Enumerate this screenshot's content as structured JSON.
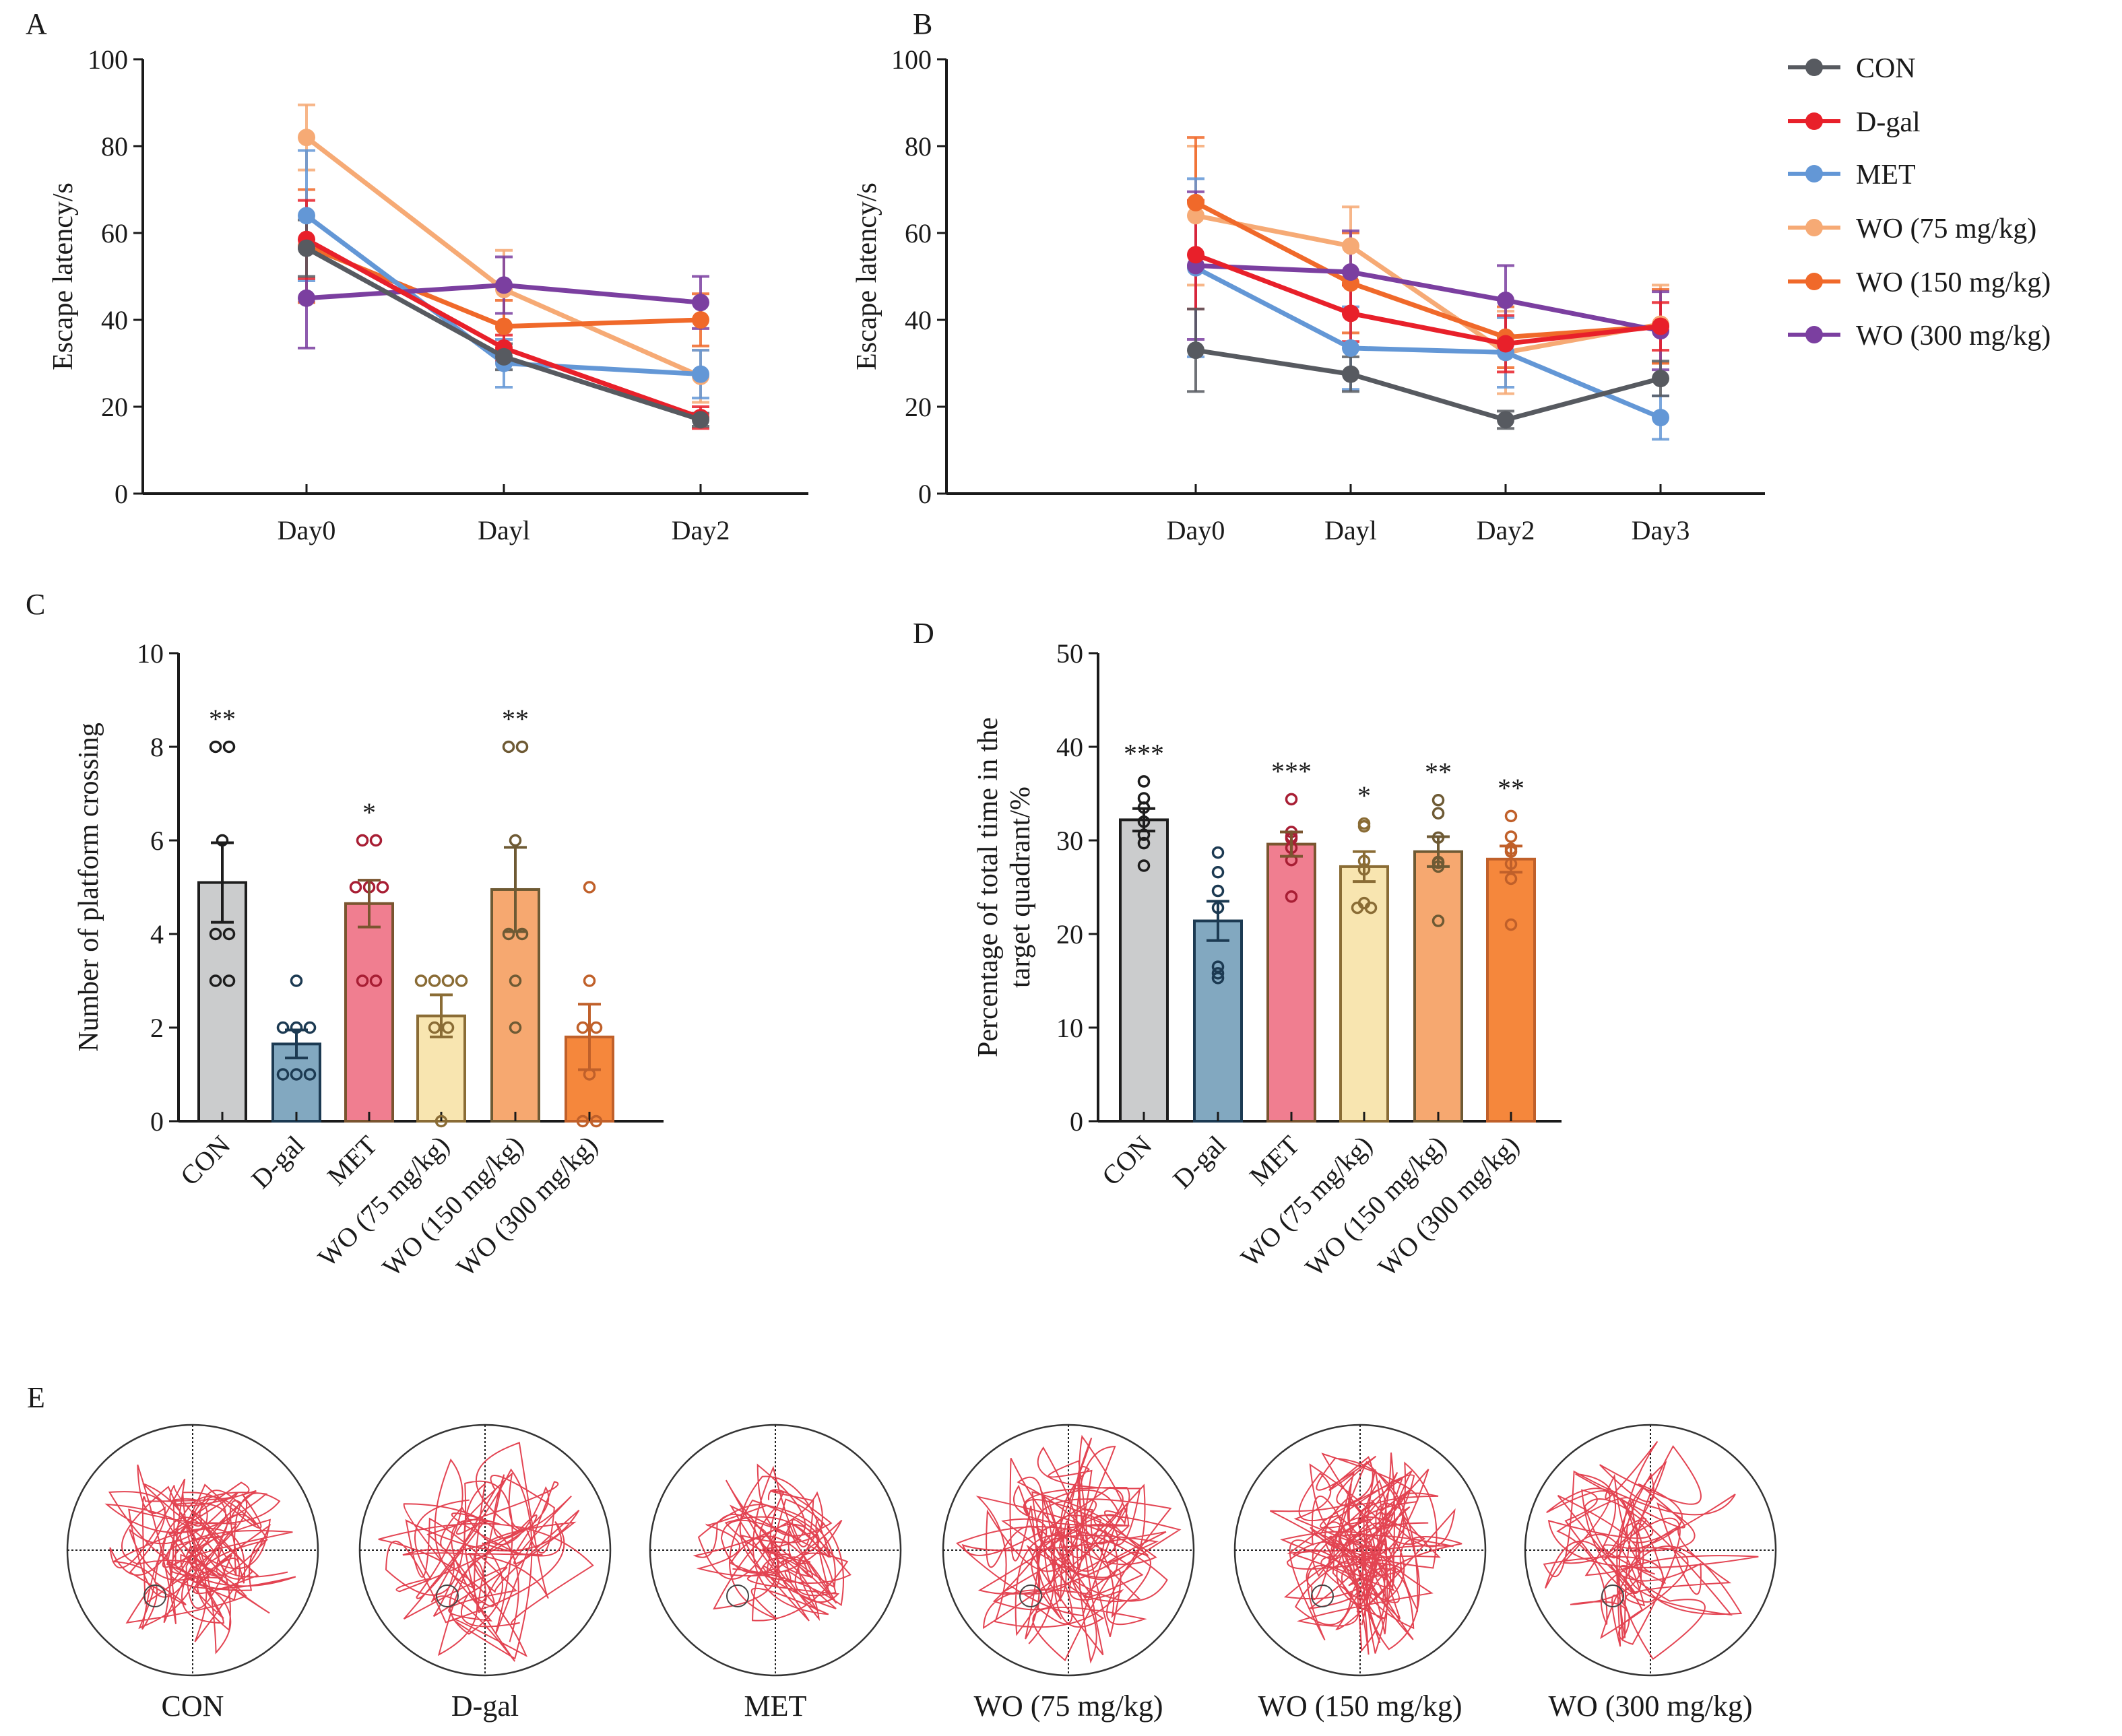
{
  "figure": {
    "panel_letters": [
      "A",
      "B",
      "C",
      "D",
      "E"
    ]
  },
  "groups": [
    {
      "name": "CON",
      "color": "#575a60"
    },
    {
      "name": "D-gal",
      "color": "#e8202a"
    },
    {
      "name": "MET",
      "color": "#6397d6"
    },
    {
      "name": "WO (75 mg/kg)",
      "color": "#f6aa75"
    },
    {
      "name": "WO (150 mg/kg)",
      "color": "#f0692a"
    },
    {
      "name": "WO (300 mg/kg)",
      "color": "#7b3fa0"
    }
  ],
  "legend": {
    "placement": "right of panel B",
    "entries": [
      "CON",
      "D-gal",
      "MET",
      "WO (75 mg/kg)",
      "WO (150 mg/kg)",
      "WO (300 mg/kg)"
    ]
  },
  "chart_data": [
    {
      "panel": "A",
      "type": "line",
      "title": "",
      "xlabel": "",
      "ylabel": "Escape latency/s",
      "ylim": [
        0,
        100
      ],
      "yticks": [
        0,
        20,
        40,
        60,
        80,
        100
      ],
      "categories": [
        "Day0",
        "Dayl",
        "Day2"
      ],
      "series": [
        {
          "name": "CON",
          "values": [
            56.5,
            31.5,
            17
          ],
          "errors": [
            6.5,
            3,
            1.5
          ]
        },
        {
          "name": "D-gal",
          "values": [
            58.5,
            33.5,
            17.5
          ],
          "errors": [
            9,
            3,
            2.5
          ]
        },
        {
          "name": "MET",
          "values": [
            64,
            30,
            27.5
          ],
          "errors": [
            15,
            5.5,
            5.5
          ]
        },
        {
          "name": "WO (75 mg/kg)",
          "values": [
            82,
            47,
            27
          ],
          "errors": [
            7.5,
            9,
            6
          ]
        },
        {
          "name": "WO (150 mg/kg)",
          "values": [
            57,
            38.5,
            40
          ],
          "errors": [
            13,
            6,
            6
          ]
        },
        {
          "name": "WO (300 mg/kg)",
          "values": [
            45,
            48,
            44
          ],
          "errors": [
            11.5,
            6.5,
            6
          ]
        }
      ]
    },
    {
      "panel": "B",
      "type": "line",
      "title": "",
      "xlabel": "",
      "ylabel": "Escape latency/s",
      "ylim": [
        0,
        100
      ],
      "yticks": [
        0,
        20,
        40,
        60,
        80,
        100
      ],
      "categories": [
        "Day0",
        "Dayl",
        "Day2",
        "Day3"
      ],
      "series": [
        {
          "name": "CON",
          "values": [
            33,
            27.5,
            17,
            26.5
          ],
          "errors": [
            9.5,
            4,
            2,
            4
          ]
        },
        {
          "name": "D-gal",
          "values": [
            55,
            41.5,
            34.5,
            38.5
          ],
          "errors": [
            12.5,
            6.5,
            6.5,
            5.5
          ]
        },
        {
          "name": "MET",
          "values": [
            52,
            33.5,
            32.5,
            17.5
          ],
          "errors": [
            20.5,
            9.5,
            8,
            5
          ]
        },
        {
          "name": "WO (75 mg/kg)",
          "values": [
            64,
            57,
            32.5,
            39
          ],
          "errors": [
            16,
            9,
            9.5,
            9
          ]
        },
        {
          "name": "WO (150 mg/kg)",
          "values": [
            67,
            48.5,
            36,
            38.5
          ],
          "errors": [
            15,
            11.5,
            7,
            8.5
          ]
        },
        {
          "name": "WO (300 mg/kg)",
          "values": [
            52.5,
            51,
            44.5,
            37.5
          ],
          "errors": [
            17,
            9.5,
            8,
            9
          ]
        }
      ]
    },
    {
      "panel": "C",
      "type": "bar",
      "title": "",
      "xlabel": "",
      "ylabel": "Number of platform crossing",
      "ylim": [
        0,
        10
      ],
      "yticks": [
        0,
        2,
        4,
        6,
        8,
        10
      ],
      "categories": [
        "CON",
        "D-gal",
        "MET",
        "WO (75 mg/kg)",
        "WO (150 mg/kg)",
        "WO (300 mg/kg)"
      ],
      "values": [
        5.1,
        1.65,
        4.65,
        2.25,
        4.95,
        1.8
      ],
      "errors": [
        0.85,
        0.3,
        0.5,
        0.45,
        0.9,
        0.7
      ],
      "points": [
        [
          8,
          8,
          6,
          4,
          4,
          3,
          3
        ],
        [
          3,
          2,
          2,
          2,
          1,
          1,
          1
        ],
        [
          6,
          6,
          5,
          5,
          5,
          3,
          3
        ],
        [
          3,
          3,
          3,
          3,
          2,
          2,
          0
        ],
        [
          8,
          8,
          6,
          4,
          4,
          3,
          2
        ],
        [
          5,
          3,
          2,
          2,
          1,
          0,
          0
        ]
      ],
      "significance": [
        "**",
        "",
        "*",
        "",
        "**",
        ""
      ],
      "bar_colors": [
        "#cbcccd",
        "#82a8c0",
        "#f07e90",
        "#f8e5b0",
        "#f6a870",
        "#f5873c"
      ],
      "edge_colors": [
        "#1d1d1d",
        "#1c3a52",
        "#7a5530",
        "#8a6c35",
        "#6e5a34",
        "#c0602a"
      ],
      "point_colors": [
        "#1d1d1d",
        "#1c3a52",
        "#a81e34",
        "#8a6c35",
        "#6e5a34",
        "#c0602a"
      ]
    },
    {
      "panel": "D",
      "type": "bar",
      "title": "",
      "xlabel": "",
      "ylabel": "Percentage of total time in the target quadrant/%",
      "ylabel_lines": [
        "Percentage of total time in the",
        "target quadrant/%"
      ],
      "ylim": [
        0,
        50
      ],
      "yticks": [
        0,
        10,
        20,
        30,
        40,
        50
      ],
      "categories": [
        "CON",
        "D-gal",
        "MET",
        "WO (75 mg/kg)",
        "WO (150 mg/kg)",
        "WO (300 mg/kg)"
      ],
      "values": [
        32.2,
        21.4,
        29.6,
        27.2,
        28.8,
        28.0
      ],
      "errors": [
        1.2,
        2.1,
        1.3,
        1.6,
        1.6,
        1.4
      ],
      "points": [
        [
          36.3,
          34.5,
          33.5,
          32.0,
          30.6,
          29.7,
          27.3
        ],
        [
          28.7,
          26.6,
          24.6,
          22.8,
          16.5,
          15.3,
          15.8
        ],
        [
          34.4,
          30.9,
          30.4,
          30.2,
          29.2,
          27.9,
          24.0
        ],
        [
          31.8,
          31.5,
          27.8,
          26.9,
          23.3,
          22.8,
          22.8
        ],
        [
          34.3,
          32.9,
          30.3,
          27.6,
          27.7,
          27.2,
          21.4
        ],
        [
          32.6,
          30.4,
          29.1,
          28.8,
          27.5,
          25.9,
          21.0
        ]
      ],
      "significance": [
        "***",
        "",
        "***",
        "*",
        "**",
        "**"
      ],
      "bar_colors": [
        "#cbcccd",
        "#82a8c0",
        "#f07e90",
        "#f8e5b0",
        "#f6a870",
        "#f5873c"
      ],
      "edge_colors": [
        "#1d1d1d",
        "#1c3a52",
        "#7a5530",
        "#8a6c35",
        "#6e5a34",
        "#c0602a"
      ],
      "point_colors": [
        "#1d1d1d",
        "#1c3a52",
        "#a81e34",
        "#8a6c35",
        "#6e5a34",
        "#c0602a"
      ]
    }
  ],
  "panel_e": {
    "description": "Representative swimming trajectories in the Morris water maze",
    "path_color": "#e0303f",
    "labels": [
      "CON",
      "D-gal",
      "MET",
      "WO (75 mg/kg)",
      "WO (150 mg/kg)",
      "WO (300 mg/kg)"
    ]
  }
}
